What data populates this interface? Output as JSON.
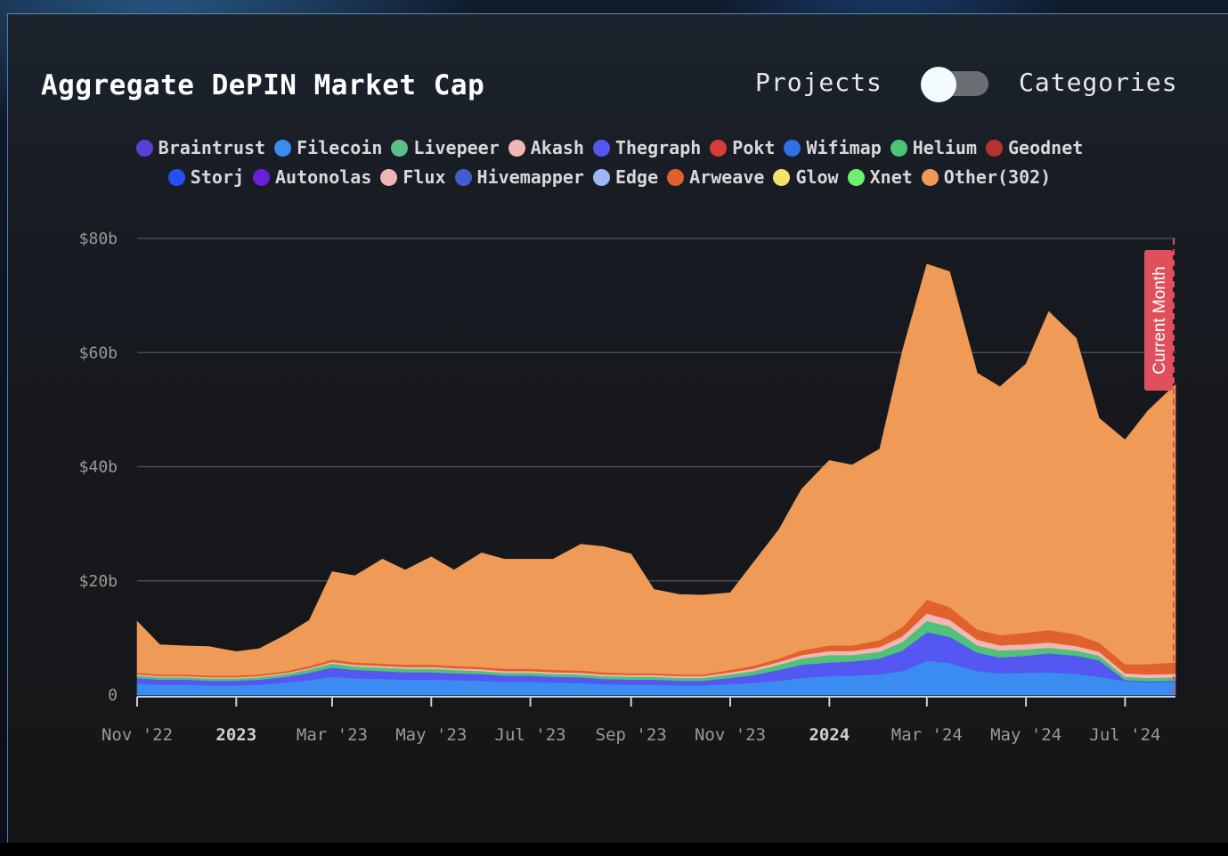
{
  "header": {
    "title": "Aggregate DePIN Market Cap",
    "toggle_left_label": "Projects",
    "toggle_right_label": "Categories",
    "toggle_state": "Projects"
  },
  "legend": {
    "row1": [
      {
        "label": "Braintrust",
        "color": "#5a3fd6"
      },
      {
        "label": "Filecoin",
        "color": "#3b8cf0"
      },
      {
        "label": "Livepeer",
        "color": "#5cbf8a"
      },
      {
        "label": "Akash",
        "color": "#f2b6b6"
      },
      {
        "label": "Thegraph",
        "color": "#5457f2"
      },
      {
        "label": "Pokt",
        "color": "#d93a3a"
      },
      {
        "label": "Wifimap",
        "color": "#2f6fe8"
      },
      {
        "label": "Helium",
        "color": "#4fc27a"
      },
      {
        "label": "Geodnet",
        "color": "#b83232"
      }
    ],
    "row2": [
      {
        "label": "Storj",
        "color": "#2450f5"
      },
      {
        "label": "Autonolas",
        "color": "#6a1fd9"
      },
      {
        "label": "Flux",
        "color": "#f0b4b4"
      },
      {
        "label": "Hivemapper",
        "color": "#3f5fd0"
      },
      {
        "label": "Edge",
        "color": "#9ab8f4"
      },
      {
        "label": "Arweave",
        "color": "#e0612b"
      },
      {
        "label": "Glow",
        "color": "#f4e16a"
      },
      {
        "label": "Xnet",
        "color": "#6ef06e"
      },
      {
        "label": "Other(302)",
        "color": "#ef9a57"
      }
    ]
  },
  "marker": {
    "label": "Current Month",
    "color": "#e0505c"
  },
  "chart_data": {
    "type": "area",
    "stacked": true,
    "title": "Aggregate DePIN Market Cap",
    "xlabel": "",
    "ylabel": "",
    "y_unit": "$",
    "ylim": [
      0,
      80
    ],
    "y_ticks": [
      {
        "value": 0,
        "label": "0"
      },
      {
        "value": 20,
        "label": "$20b"
      },
      {
        "value": 40,
        "label": "$40b"
      },
      {
        "value": 60,
        "label": "$60b"
      },
      {
        "value": 80,
        "label": "$80b"
      }
    ],
    "x_ticks": [
      {
        "label": "Nov '22",
        "bold": false
      },
      {
        "label": "2023",
        "bold": true
      },
      {
        "label": "Mar '23",
        "bold": false
      },
      {
        "label": "May '23",
        "bold": false
      },
      {
        "label": "Jul '23",
        "bold": false
      },
      {
        "label": "Sep '23",
        "bold": false
      },
      {
        "label": "Nov '23",
        "bold": false
      },
      {
        "label": "2024",
        "bold": true
      },
      {
        "label": "Mar '24",
        "bold": false
      },
      {
        "label": "May '24",
        "bold": false
      },
      {
        "label": "Jul '24",
        "bold": false
      }
    ],
    "x": [
      "2022-11-01",
      "2022-11-15",
      "2022-12-01",
      "2022-12-15",
      "2023-01-01",
      "2023-01-15",
      "2023-02-01",
      "2023-02-15",
      "2023-03-01",
      "2023-03-15",
      "2023-04-01",
      "2023-04-15",
      "2023-05-01",
      "2023-05-15",
      "2023-06-01",
      "2023-06-15",
      "2023-07-01",
      "2023-07-15",
      "2023-08-01",
      "2023-08-15",
      "2023-09-01",
      "2023-09-15",
      "2023-10-01",
      "2023-10-15",
      "2023-11-01",
      "2023-11-15",
      "2023-12-01",
      "2023-12-15",
      "2024-01-01",
      "2024-01-15",
      "2024-02-01",
      "2024-02-15",
      "2024-03-01",
      "2024-03-15",
      "2024-04-01",
      "2024-04-15",
      "2024-05-01",
      "2024-05-15",
      "2024-06-01",
      "2024-06-15",
      "2024-07-01",
      "2024-07-15",
      "2024-08-01"
    ],
    "current_month_x": "2024-08-01",
    "series": [
      {
        "name": "Filecoin",
        "color": "#3b8cf0",
        "values": [
          2.0,
          1.8,
          1.8,
          1.7,
          1.7,
          1.8,
          2.2,
          2.6,
          3.2,
          2.9,
          2.8,
          2.7,
          2.7,
          2.6,
          2.5,
          2.3,
          2.3,
          2.2,
          2.1,
          1.9,
          1.8,
          1.8,
          1.7,
          1.7,
          1.9,
          2.1,
          2.5,
          3.0,
          3.3,
          3.4,
          3.6,
          4.2,
          6.0,
          5.6,
          4.2,
          3.8,
          3.9,
          4.0,
          3.7,
          3.2,
          2.4,
          2.2,
          2.3
        ]
      },
      {
        "name": "Thegraph",
        "color": "#5457f2",
        "values": [
          1.0,
          0.9,
          0.9,
          0.8,
          0.8,
          0.9,
          1.0,
          1.3,
          1.6,
          1.5,
          1.4,
          1.3,
          1.3,
          1.2,
          1.2,
          1.1,
          1.1,
          1.0,
          1.0,
          0.9,
          0.9,
          0.9,
          0.8,
          0.8,
          1.1,
          1.4,
          1.9,
          2.3,
          2.4,
          2.5,
          2.8,
          3.6,
          5.0,
          4.6,
          3.2,
          2.8,
          3.0,
          3.3,
          3.2,
          2.9,
          0.2,
          0.2,
          0.2
        ]
      },
      {
        "name": "Helium",
        "color": "#4fc27a",
        "values": [
          0.4,
          0.4,
          0.4,
          0.4,
          0.4,
          0.4,
          0.5,
          0.6,
          0.7,
          0.6,
          0.6,
          0.6,
          0.6,
          0.6,
          0.5,
          0.5,
          0.5,
          0.5,
          0.5,
          0.5,
          0.5,
          0.5,
          0.5,
          0.5,
          0.6,
          0.7,
          0.9,
          1.1,
          1.3,
          1.1,
          1.2,
          1.5,
          2.0,
          1.8,
          1.3,
          1.2,
          1.1,
          1.0,
          0.9,
          0.8,
          0.6,
          0.6,
          0.6
        ]
      },
      {
        "name": "Akash",
        "color": "#f2b6b6",
        "values": [
          0.2,
          0.2,
          0.2,
          0.2,
          0.2,
          0.2,
          0.2,
          0.2,
          0.3,
          0.3,
          0.3,
          0.3,
          0.3,
          0.3,
          0.3,
          0.3,
          0.3,
          0.3,
          0.3,
          0.3,
          0.3,
          0.3,
          0.3,
          0.3,
          0.4,
          0.4,
          0.5,
          0.6,
          0.7,
          0.7,
          0.8,
          1.0,
          1.3,
          1.2,
          1.0,
          0.9,
          0.9,
          0.9,
          0.8,
          0.7,
          0.6,
          0.6,
          0.6
        ]
      },
      {
        "name": "Arweave",
        "color": "#e0612b",
        "values": [
          0.3,
          0.3,
          0.3,
          0.3,
          0.3,
          0.3,
          0.3,
          0.4,
          0.4,
          0.4,
          0.4,
          0.4,
          0.4,
          0.4,
          0.4,
          0.4,
          0.4,
          0.4,
          0.4,
          0.4,
          0.3,
          0.3,
          0.3,
          0.3,
          0.4,
          0.5,
          0.6,
          0.8,
          1.0,
          1.0,
          1.2,
          1.6,
          2.4,
          2.2,
          1.8,
          1.8,
          2.0,
          2.2,
          2.0,
          1.6,
          1.6,
          1.8,
          2.0
        ]
      },
      {
        "name": "Other(302)",
        "color": "#ef9a57",
        "values": [
          9.0,
          5.2,
          5.0,
          5.1,
          4.2,
          4.5,
          6.4,
          8.0,
          15.4,
          15.2,
          18.3,
          16.6,
          18.9,
          16.8,
          20.0,
          19.2,
          19.2,
          19.4,
          22.1,
          22.0,
          20.9,
          14.7,
          14.0,
          13.9,
          13.5,
          18.0,
          22.6,
          28.3,
          32.4,
          31.6,
          33.5,
          48.4,
          58.8,
          58.8,
          44.9,
          43.5,
          47.1,
          55.8,
          51.9,
          39.3,
          39.3,
          44.4,
          48.7
        ]
      }
    ]
  }
}
